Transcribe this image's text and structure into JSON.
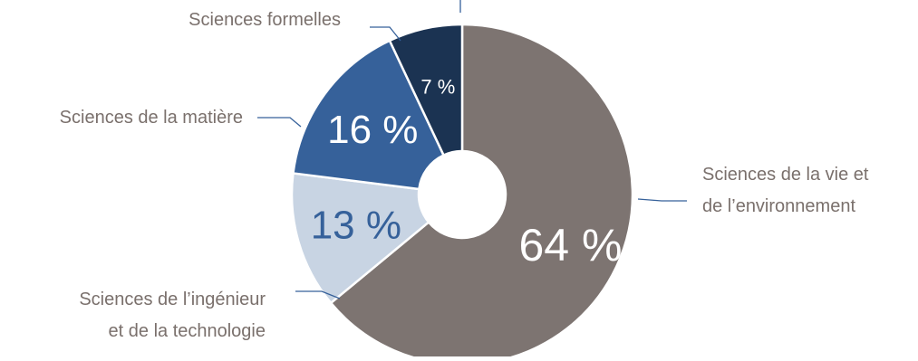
{
  "chart_data": {
    "type": "pie",
    "donut": true,
    "categories": [
      "Sciences de la vie et de l’environnement",
      "Sciences de l’ingénieur et de la technologie",
      "Sciences de la matière",
      "Sciences formelles"
    ],
    "values": [
      64,
      13,
      16,
      7
    ],
    "value_labels": [
      "64 %",
      "13 %",
      "16 %",
      "7 %"
    ],
    "colors": [
      "#7d7471",
      "#c8d4e3",
      "#36619a",
      "#1b3352"
    ],
    "label_colors": [
      "#ffffff",
      "#36619a",
      "#ffffff",
      "#ffffff"
    ],
    "label_line_color": "#36619a",
    "category_text_color": "#7a706c",
    "title": "",
    "legend": "none",
    "labels": [
      {
        "line1": "Sciences de la vie et",
        "line2": "de l’environnement"
      },
      {
        "line1": "Sciences de l’ingénieur",
        "line2": "et de la technologie"
      },
      {
        "line1": "Sciences de la matière",
        "line2": ""
      },
      {
        "line1": "Sciences formelles",
        "line2": ""
      }
    ]
  }
}
